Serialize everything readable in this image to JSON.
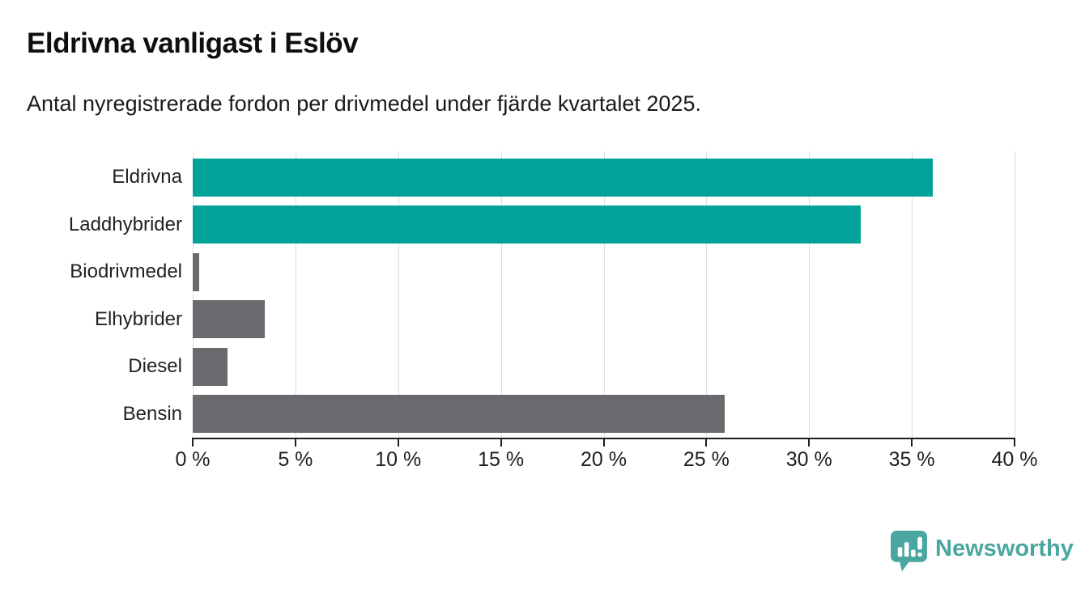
{
  "header": {
    "title": "Eldrivna vanligast i Eslöv",
    "subtitle": "Antal nyregistrerade fordon per drivmedel under fjärde kvartalet 2025."
  },
  "chart_data": {
    "type": "bar",
    "orientation": "horizontal",
    "title": "Eldrivna vanligast i Eslöv",
    "subtitle": "Antal nyregistrerade fordon per drivmedel under fjärde kvartalet 2025.",
    "categories": [
      "Eldrivna",
      "Laddhybrider",
      "Biodrivmedel",
      "Elhybrider",
      "Diesel",
      "Bensin"
    ],
    "values": [
      36,
      32.5,
      0.3,
      3.5,
      1.7,
      25.9
    ],
    "unit": "%",
    "bar_colors": [
      "#00a299",
      "#00a299",
      "#6a6a6e",
      "#6a6a6e",
      "#6a6a6e",
      "#6a6a6e"
    ],
    "xlim": [
      0,
      40
    ],
    "x_ticks": [
      0,
      5,
      10,
      15,
      20,
      25,
      30,
      35,
      40
    ],
    "x_tick_labels": [
      "0 %",
      "5 %",
      "10 %",
      "15 %",
      "20 %",
      "25 %",
      "30 %",
      "35 %",
      "40 %"
    ],
    "xlabel": "",
    "ylabel": "",
    "grid": "vertical-on",
    "legend": "none"
  },
  "footer": {
    "brand": "Newsworthy"
  },
  "colors": {
    "accent_teal": "#00a299",
    "bar_gray": "#6a6a6e",
    "gridline": "#dcdcdc",
    "axis": "#1f1f1f",
    "brand_teal": "#4aa79f"
  }
}
